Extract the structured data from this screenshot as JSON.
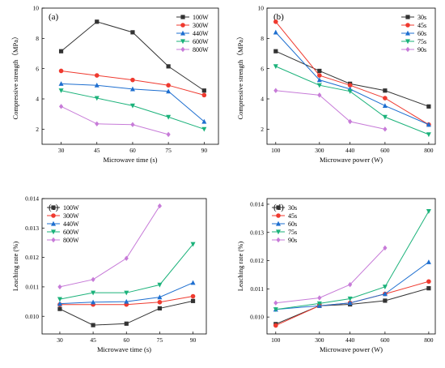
{
  "chart_data": [
    {
      "type": "line",
      "panel_label": "(a)",
      "xlabel": "Microwave time (s)",
      "ylabel": "Compressive strength（MPa）",
      "categories": [
        30,
        45,
        60,
        75,
        90
      ],
      "xlim": [
        22,
        96
      ],
      "ylim": [
        1,
        10
      ],
      "yticks": [
        "2",
        "4",
        "6",
        "8",
        "10"
      ],
      "ytick_values": [
        2,
        4,
        6,
        8,
        10
      ],
      "legend_position": "top-right",
      "series": [
        {
          "name": "100W",
          "color": "#333333",
          "marker": "square",
          "values": [
            7.15,
            9.1,
            8.4,
            6.15,
            4.55
          ]
        },
        {
          "name": "300W",
          "color": "#ef3a2f",
          "marker": "circle",
          "values": [
            5.85,
            5.55,
            5.25,
            4.9,
            4.25
          ]
        },
        {
          "name": "440W",
          "color": "#1e6fd0",
          "marker": "triangle-up",
          "values": [
            5.0,
            4.9,
            4.65,
            4.5,
            2.5
          ]
        },
        {
          "name": "600W",
          "color": "#1bb27a",
          "marker": "triangle-down",
          "values": [
            4.55,
            4.05,
            3.55,
            2.8,
            2.0
          ]
        },
        {
          "name": "800W",
          "color": "#c77bd8",
          "marker": "diamond",
          "values": [
            3.5,
            2.35,
            2.3,
            1.65,
            null
          ]
        }
      ]
    },
    {
      "type": "line",
      "panel_label": "(b)",
      "xlabel": "Microwave power (W)",
      "ylabel": "Compressive strength（MPa）",
      "categories": [
        100,
        300,
        440,
        600,
        800
      ],
      "xlim": [
        60,
        830
      ],
      "ylim": [
        1,
        10
      ],
      "yticks": [
        "2",
        "4",
        "6",
        "8",
        "10"
      ],
      "ytick_values": [
        2,
        4,
        6,
        8,
        10
      ],
      "legend_position": "top-right",
      "series": [
        {
          "name": "30s",
          "color": "#333333",
          "marker": "square",
          "values": [
            7.15,
            5.85,
            5.0,
            4.55,
            3.5
          ]
        },
        {
          "name": "45s",
          "color": "#ef3a2f",
          "marker": "circle",
          "values": [
            9.1,
            5.55,
            4.9,
            4.05,
            2.3
          ]
        },
        {
          "name": "60s",
          "color": "#1e6fd0",
          "marker": "triangle-up",
          "values": [
            8.4,
            5.25,
            4.65,
            3.55,
            2.3
          ]
        },
        {
          "name": "75s",
          "color": "#1bb27a",
          "marker": "triangle-down",
          "values": [
            6.15,
            4.9,
            4.5,
            2.8,
            1.65
          ]
        },
        {
          "name": "90s",
          "color": "#c77bd8",
          "marker": "diamond",
          "values": [
            4.55,
            4.25,
            2.5,
            2.0,
            null
          ]
        }
      ]
    },
    {
      "type": "line",
      "panel_label": "(c)",
      "xlabel": "Microwave time (s)",
      "ylabel": "Leaching rate (%)",
      "categories": [
        30,
        45,
        60,
        75,
        90
      ],
      "xlim": [
        22,
        96
      ],
      "ylim": [
        0.0094,
        0.014
      ],
      "yticks": [
        "0.010",
        "0.011",
        "0.012",
        "0.013",
        "0.014"
      ],
      "ytick_values": [
        0.01,
        0.011,
        0.012,
        0.013,
        0.014
      ],
      "legend_position": "top-left",
      "series": [
        {
          "name": "100W",
          "color": "#333333",
          "marker": "square",
          "values": [
            0.01025,
            0.0097,
            0.00975,
            0.01027,
            0.01052
          ]
        },
        {
          "name": "300W",
          "color": "#ef3a2f",
          "marker": "circle",
          "values": [
            0.0104,
            0.0104,
            0.0104,
            0.01048,
            0.01068
          ]
        },
        {
          "name": "440W",
          "color": "#1e6fd0",
          "marker": "triangle-up",
          "values": [
            0.01043,
            0.01048,
            0.0105,
            0.01065,
            0.01114
          ]
        },
        {
          "name": "600W",
          "color": "#1bb27a",
          "marker": "triangle-down",
          "values": [
            0.01058,
            0.0108,
            0.0108,
            0.01107,
            0.01245
          ]
        },
        {
          "name": "800W",
          "color": "#c77bd8",
          "marker": "diamond",
          "values": [
            0.011,
            0.01125,
            0.01197,
            0.01375,
            null
          ]
        }
      ]
    },
    {
      "type": "line",
      "panel_label": "(d)",
      "xlabel": "Microwave power (W)",
      "ylabel": "Leaching rate (%)",
      "categories": [
        100,
        300,
        440,
        600,
        800
      ],
      "xlim": [
        60,
        830
      ],
      "ylim": [
        0.0094,
        0.0142
      ],
      "yticks": [
        "0.010",
        "0.011",
        "0.012",
        "0.013",
        "0.014"
      ],
      "ytick_values": [
        0.01,
        0.011,
        0.012,
        0.013,
        0.014
      ],
      "legend_position": "top-left",
      "series": [
        {
          "name": "30s",
          "color": "#333333",
          "marker": "square",
          "values": [
            0.00975,
            0.0104,
            0.01045,
            0.01058,
            0.01102
          ]
        },
        {
          "name": "45s",
          "color": "#ef3a2f",
          "marker": "circle",
          "values": [
            0.0097,
            0.0104,
            0.0105,
            0.01082,
            0.01126
          ]
        },
        {
          "name": "60s",
          "color": "#1e6fd0",
          "marker": "triangle-up",
          "values": [
            0.01027,
            0.0104,
            0.0105,
            0.01082,
            0.01195
          ]
        },
        {
          "name": "75s",
          "color": "#1bb27a",
          "marker": "triangle-down",
          "values": [
            0.01027,
            0.01048,
            0.01065,
            0.01107,
            0.01375
          ]
        },
        {
          "name": "90s",
          "color": "#c77bd8",
          "marker": "diamond",
          "values": [
            0.0105,
            0.01068,
            0.01115,
            0.01245,
            null
          ]
        }
      ]
    }
  ]
}
